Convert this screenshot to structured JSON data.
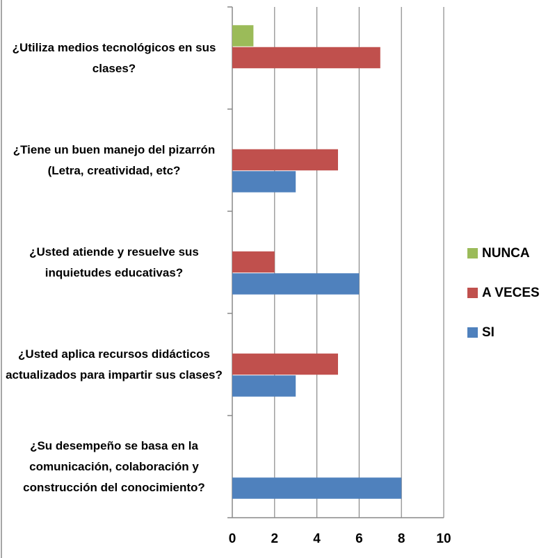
{
  "chart_data": {
    "type": "bar",
    "orientation": "horizontal",
    "categories": [
      "¿Utiliza medios tecnológicos en sus clases?",
      "¿Tiene un buen manejo del pizarrón (Letra, creatividad, etc?",
      "¿Usted atiende y resuelve sus inquietudes educativas?",
      "¿Usted aplica recursos didácticos actualizados para impartir sus clases?",
      "¿Su desempeño se basa en la comunicación, colaboración y construcción del conocimiento?"
    ],
    "series": [
      {
        "name": "NUNCA",
        "color": "#9bbb59",
        "values": [
          1,
          0,
          0,
          0,
          0
        ]
      },
      {
        "name": "A VECES",
        "color": "#c0504d",
        "values": [
          7,
          5,
          2,
          5,
          0
        ]
      },
      {
        "name": "SI",
        "color": "#4f81bd",
        "values": [
          0,
          3,
          6,
          3,
          8
        ]
      }
    ],
    "xlim": [
      0,
      10
    ],
    "xticks": [
      0,
      2,
      4,
      6,
      8,
      10
    ],
    "grid": true,
    "legend": "right"
  }
}
